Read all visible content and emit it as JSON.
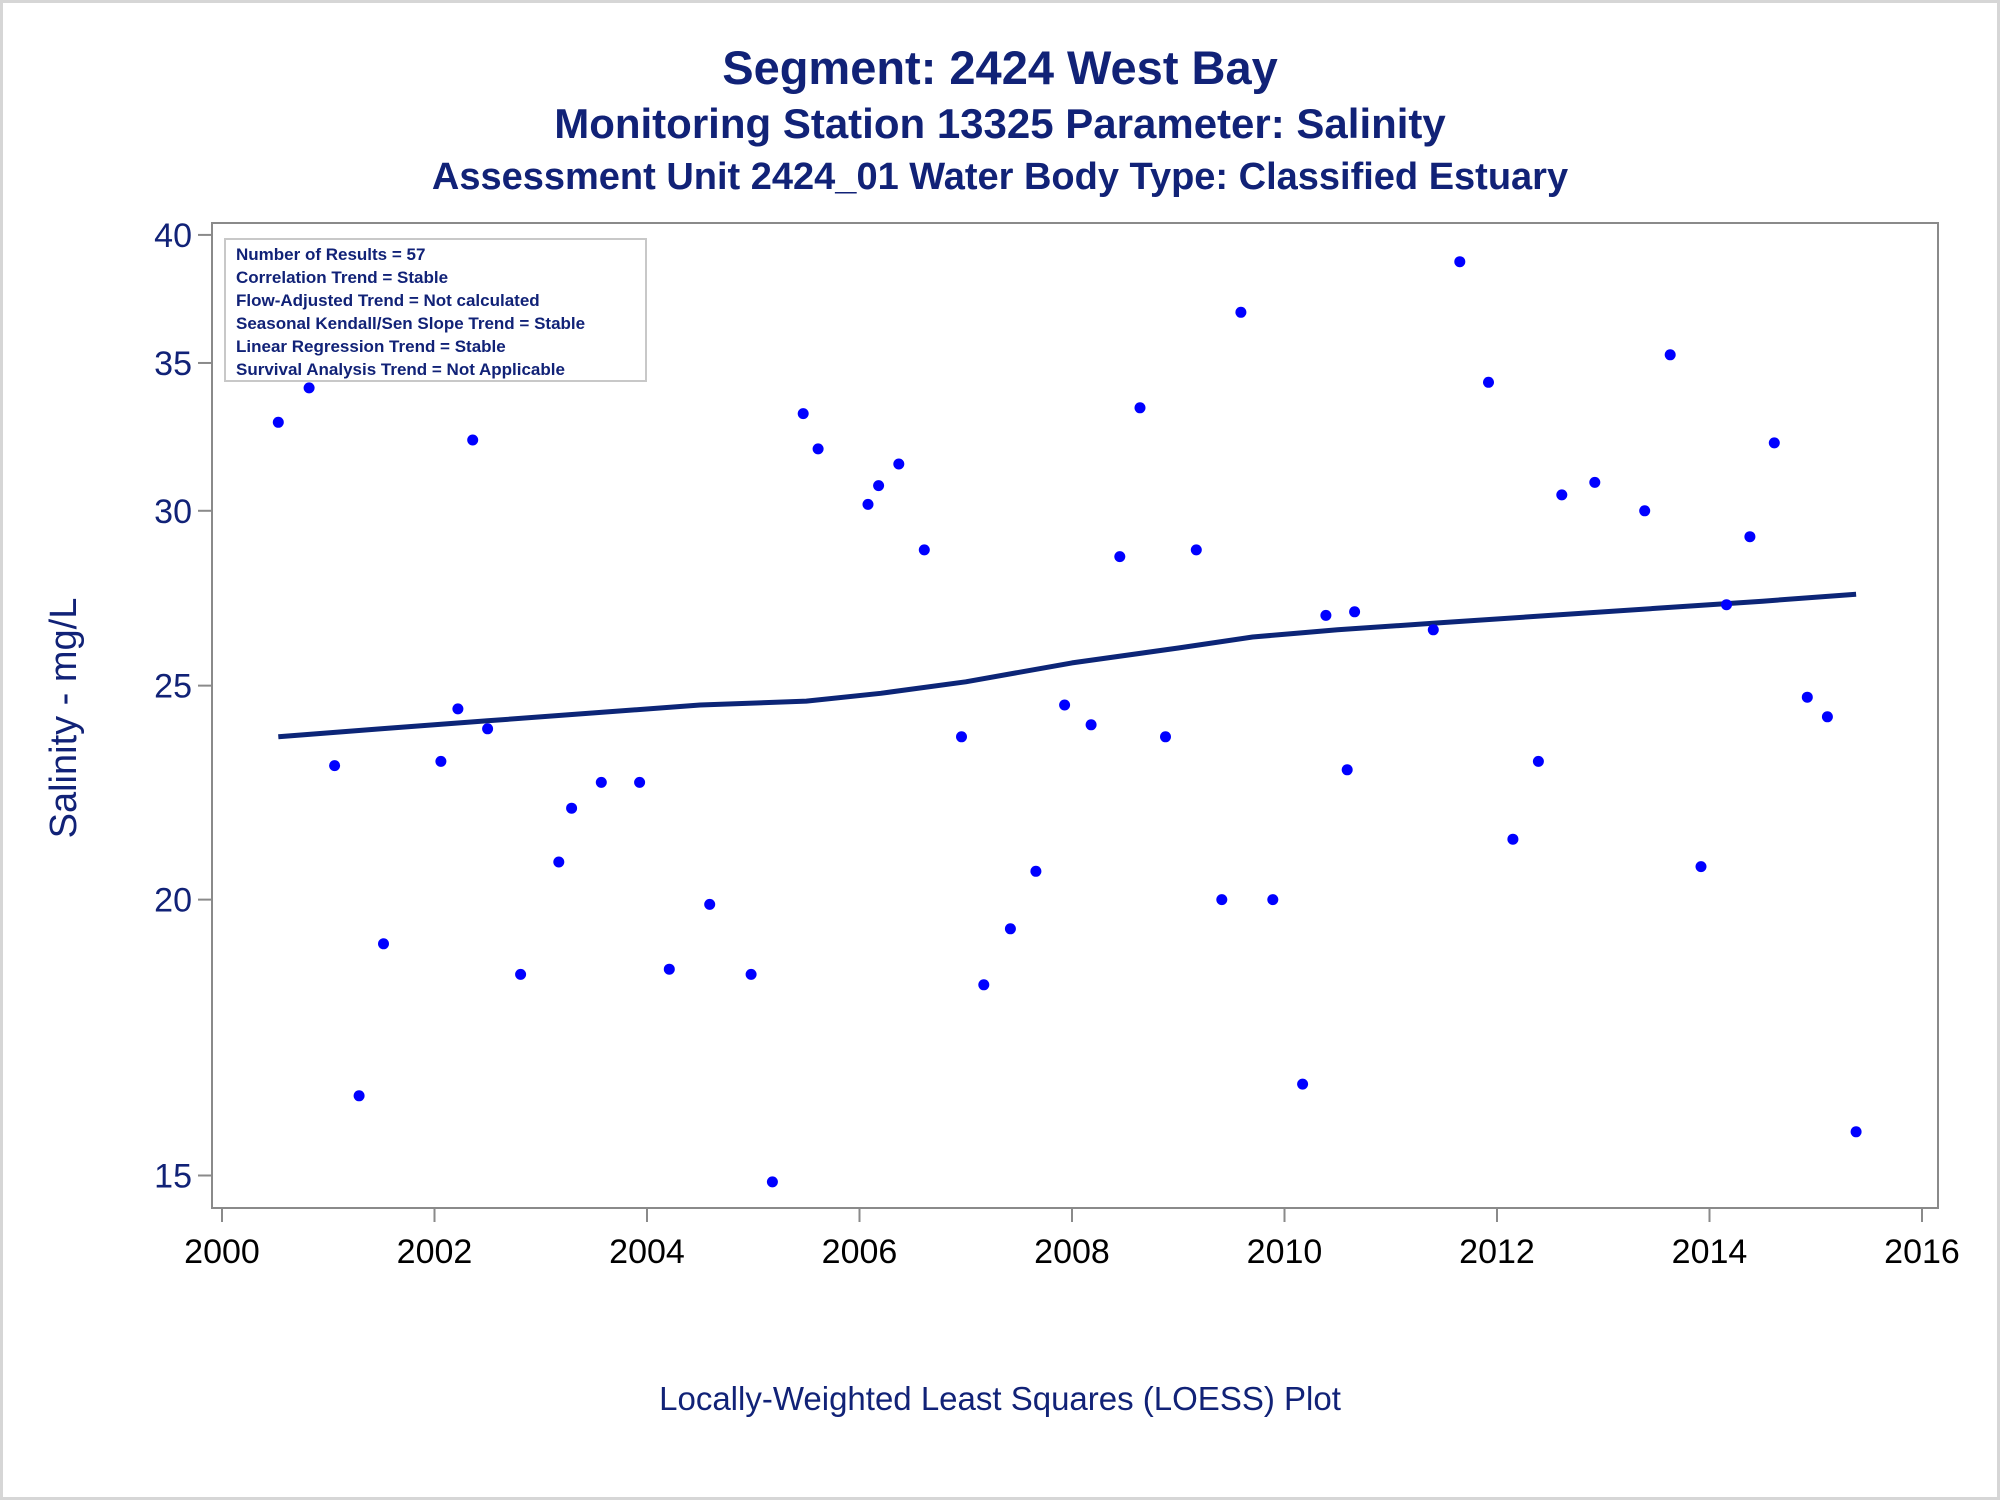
{
  "title": "Segment: 2424  West Bay",
  "subtitle_1": "Monitoring Station 13325 Parameter: Salinity",
  "subtitle_2": "Assessment Unit 2424_01   Water Body Type: Classified Estuary",
  "footnote": "Locally-Weighted Least Squares (LOESS) Plot",
  "colors": {
    "text": "#112277",
    "points": "#0000ff",
    "line": "#0c2577",
    "axis": "#8a8a8a"
  },
  "chart_data": {
    "type": "scatter",
    "title": "Segment: 2424  West Bay",
    "ylabel": "Salinity - mg/L",
    "xlabel": "",
    "xlim": [
      2000,
      2016
    ],
    "ylim": [
      14.5,
      40.5
    ],
    "y_scale": "log",
    "xticks": [
      2000,
      2002,
      2004,
      2006,
      2008,
      2010,
      2012,
      2014,
      2016
    ],
    "yticks": [
      15,
      20,
      25,
      30,
      35,
      40
    ],
    "grid": false,
    "legend_box": {
      "position": "top-left",
      "lines": [
        "Number of Results = 57",
        "Correlation Trend = Stable",
        "Flow-Adjusted Trend = Not calculated",
        "Seasonal Kendall/Sen Slope Trend = Stable",
        "Linear Regression Trend = Stable",
        "Survival Analysis Trend = Not Applicable"
      ]
    },
    "series": [
      {
        "type": "scatter",
        "points": [
          [
            2000.53,
            32.9
          ],
          [
            2000.82,
            34.1
          ],
          [
            2001.06,
            23.0
          ],
          [
            2001.29,
            16.3
          ],
          [
            2001.52,
            19.1
          ],
          [
            2002.06,
            23.1
          ],
          [
            2002.22,
            24.4
          ],
          [
            2002.36,
            32.3
          ],
          [
            2002.5,
            23.9
          ],
          [
            2002.81,
            18.5
          ],
          [
            2003.17,
            20.8
          ],
          [
            2003.29,
            22.0
          ],
          [
            2003.57,
            22.6
          ],
          [
            2003.93,
            22.6
          ],
          [
            2004.21,
            18.6
          ],
          [
            2004.59,
            19.9
          ],
          [
            2004.98,
            18.5
          ],
          [
            2005.18,
            14.9
          ],
          [
            2005.47,
            33.2
          ],
          [
            2005.61,
            32.0
          ],
          [
            2006.08,
            30.2
          ],
          [
            2006.18,
            30.8
          ],
          [
            2006.37,
            31.5
          ],
          [
            2006.61,
            28.8
          ],
          [
            2006.96,
            23.7
          ],
          [
            2007.17,
            18.3
          ],
          [
            2007.42,
            19.4
          ],
          [
            2007.66,
            20.6
          ],
          [
            2007.93,
            24.5
          ],
          [
            2008.18,
            24.0
          ],
          [
            2008.45,
            28.6
          ],
          [
            2008.64,
            33.4
          ],
          [
            2008.88,
            23.7
          ],
          [
            2009.17,
            28.8
          ],
          [
            2009.41,
            20.0
          ],
          [
            2009.59,
            36.9
          ],
          [
            2009.89,
            20.0
          ],
          [
            2010.17,
            16.5
          ],
          [
            2010.39,
            26.9
          ],
          [
            2010.59,
            22.9
          ],
          [
            2010.66,
            27.0
          ],
          [
            2011.4,
            26.5
          ],
          [
            2011.65,
            38.9
          ],
          [
            2011.92,
            34.3
          ],
          [
            2012.15,
            21.3
          ],
          [
            2012.39,
            23.1
          ],
          [
            2012.61,
            30.5
          ],
          [
            2012.92,
            30.9
          ],
          [
            2013.39,
            30.0
          ],
          [
            2013.63,
            35.3
          ],
          [
            2013.92,
            20.7
          ],
          [
            2014.16,
            27.2
          ],
          [
            2014.38,
            29.2
          ],
          [
            2014.61,
            32.2
          ],
          [
            2014.92,
            24.7
          ],
          [
            2015.11,
            24.2
          ],
          [
            2015.38,
            15.7
          ]
        ]
      },
      {
        "type": "line",
        "points": [
          [
            2000.53,
            23.7
          ],
          [
            2001.5,
            23.9
          ],
          [
            2002.5,
            24.1
          ],
          [
            2003.5,
            24.3
          ],
          [
            2004.5,
            24.5
          ],
          [
            2005.5,
            24.6
          ],
          [
            2006.2,
            24.8
          ],
          [
            2007.0,
            25.1
          ],
          [
            2008.0,
            25.6
          ],
          [
            2009.0,
            26.0
          ],
          [
            2009.7,
            26.3
          ],
          [
            2010.5,
            26.5
          ],
          [
            2011.5,
            26.7
          ],
          [
            2012.5,
            26.9
          ],
          [
            2013.5,
            27.1
          ],
          [
            2014.5,
            27.3
          ],
          [
            2015.38,
            27.5
          ]
        ]
      }
    ]
  }
}
